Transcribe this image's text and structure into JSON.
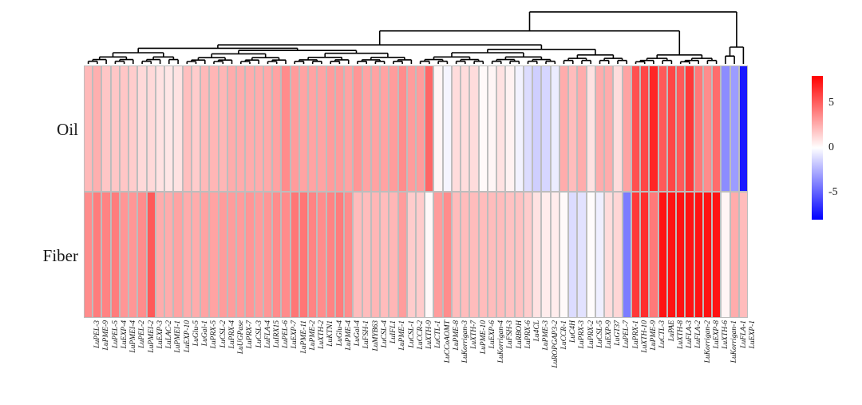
{
  "chart_data": {
    "type": "heatmap",
    "title": "",
    "rows": [
      "Oil",
      "Fiber"
    ],
    "columns": [
      "LuPEL-3",
      "LuPME-9",
      "LuPEL-5",
      "LuEXP-4",
      "LuPMEI-4",
      "LuPEL-2",
      "LuPMEI-2",
      "LuEXP-3",
      "LuLAC-2",
      "LuPMEI-1",
      "LuEXP-10",
      "LuGlu-5",
      "LuGal-1",
      "LuPRX-5",
      "LuCSL-2",
      "LuPRX-4",
      "LuUGPase",
      "LuPRX-7",
      "LuCSL-3",
      "LuFLA-4",
      "LuIRX15",
      "LuPEL-6",
      "LuEXP-7",
      "LuPME-11",
      "LuPME-2",
      "LuXTH-2",
      "LuKTN1",
      "LuGlu-4",
      "LuPME-4",
      "LuGal-4",
      "LuFSH-1",
      "LuMYB63",
      "LuCSL-4",
      "LuIFL1",
      "LuPME-1",
      "LuCSL-1",
      "LuCCR-2",
      "LuXTH-9",
      "LuCTL-1",
      "LuCCoAOMT",
      "LuPME-8",
      "LuKorrigan-3",
      "LuXTH-7",
      "LuPME-10",
      "LuEXP-6",
      "LuKorrigan-4",
      "LuFSH-3",
      "LuRBOH",
      "LuPRX-6",
      "Lu4CL",
      "LuPME-3",
      "LuROPGAP3-2",
      "LuCCR-1",
      "LuC4H",
      "LuPRX-3",
      "LuPRX-2",
      "LuCSL-5",
      "LuEXP-9",
      "LuGT37",
      "LuPEL-7",
      "LuPRX-1",
      "LuXTH-10",
      "LuPME-9",
      "LuCTL-3",
      "LuPAE",
      "LuXTH-8",
      "LuFLA-3",
      "LuFLA-2",
      "LuKorrigan-2",
      "LuEXP-8",
      "LuXTH-6",
      "LuKorrigan-1",
      "LuFLA-1",
      "LuEXP-1"
    ],
    "series": [
      {
        "name": "Oil",
        "values": [
          2.2,
          2.5,
          1.8,
          1.8,
          1.8,
          1.6,
          1.2,
          1.2,
          0.9,
          0.8,
          0.9,
          2.0,
          1.6,
          2.2,
          2.3,
          2.3,
          2.6,
          2.6,
          2.6,
          2.6,
          2.7,
          2.9,
          3.6,
          3.1,
          2.9,
          2.9,
          2.9,
          3.1,
          3.1,
          2.9,
          3.3,
          2.9,
          2.9,
          2.9,
          3.1,
          3.6,
          3.1,
          3.1,
          4.8,
          0.3,
          -0.3,
          1.1,
          1.1,
          1.1,
          0.2,
          0.3,
          0.9,
          0.4,
          -0.4,
          -1.1,
          -1.5,
          -1.3,
          -0.6,
          2.6,
          2.1,
          2.6,
          0.9,
          2.6,
          2.6,
          1.1,
          2.9,
          5.5,
          5.8,
          6.8,
          5.2,
          5.8,
          5.2,
          6.2,
          4.2,
          3.6,
          4.6,
          -3.6,
          -3.1,
          -7.2
        ]
      },
      {
        "name": "Fiber",
        "values": [
          3.6,
          4.1,
          3.9,
          4.1,
          3.3,
          3.3,
          3.6,
          5.2,
          2.6,
          2.6,
          2.9,
          2.6,
          2.6,
          2.9,
          2.9,
          3.1,
          3.1,
          3.1,
          3.3,
          3.1,
          3.3,
          3.6,
          3.6,
          4.3,
          4.3,
          3.9,
          3.6,
          3.9,
          4.1,
          3.6,
          2.1,
          2.1,
          2.3,
          2.1,
          2.3,
          3.1,
          1.6,
          1.6,
          0.2,
          3.1,
          3.6,
          2.1,
          2.1,
          2.1,
          2.1,
          2.1,
          2.1,
          1.9,
          1.9,
          1.6,
          0.9,
          0.6,
          0.6,
          0.2,
          -1.1,
          -0.9,
          0.1,
          -0.5,
          1.1,
          1.3,
          -4.1,
          6.2,
          6.6,
          4.2,
          7.4,
          7.4,
          7.4,
          7.4,
          7.4,
          7.4,
          7.4,
          0.3,
          2.6,
          2.1
        ]
      }
    ],
    "color_scale": {
      "min": -8,
      "max": 8,
      "max_color": "#ff0000",
      "mid_color": "#ffffff",
      "min_color": "#0000ff",
      "legend_position": "right",
      "legend_tick_labels": [
        "5",
        "0",
        "-5"
      ]
    },
    "grid": "cell-borders",
    "cell_border_color": "#bdbdbd",
    "dendrogram_line_color": "#000000",
    "dendrogram": {
      "h": 0.93,
      "c": [
        {
          "h": 0.59,
          "c": [
            {
              "h": 0.34,
              "c": [
                {
                  "h": 0.28,
                  "c": [
                    {
                      "h": 0.2,
                      "range": [
                        0,
                        10
                      ]
                    },
                    {
                      "h": 0.24,
                      "c": [
                        {
                          "h": 0.18,
                          "range": [
                            11,
                            22
                          ]
                        },
                        {
                          "h": 0.19,
                          "range": [
                            23,
                            36
                          ]
                        }
                      ]
                    }
                  ]
                },
                {
                  "h": 0.26,
                  "c": [
                    {
                      "h": 0.2,
                      "range": [
                        37,
                        52
                      ]
                    },
                    {
                      "h": 0.16,
                      "range": [
                        53,
                        60
                      ]
                    }
                  ]
                }
              ]
            },
            {
              "h": 0.16,
              "range": [
                61,
                70
              ]
            }
          ]
        },
        {
          "h": 0.3,
          "c": [
            {
              "h": 0.14,
              "range": [
                71,
                72
              ]
            },
            {
              "leaf": 73
            }
          ]
        }
      ]
    }
  }
}
